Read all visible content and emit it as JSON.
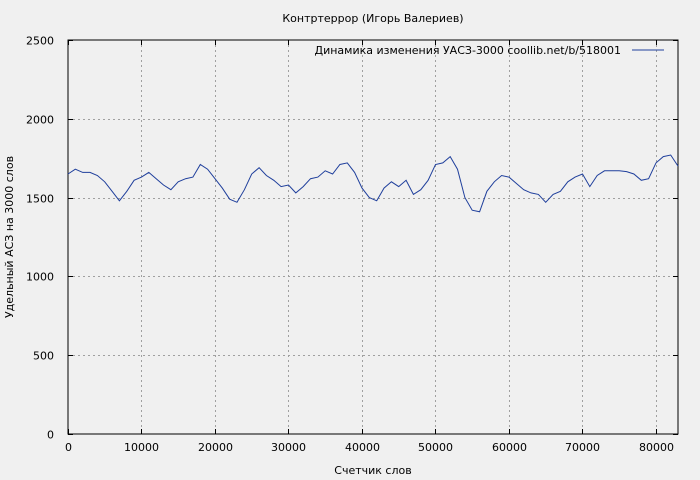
{
  "chart_data": {
    "type": "line",
    "title": "Контртеррор (Игорь Валериев)",
    "xlabel": "Счетчик слов",
    "ylabel": "Удельный АСЗ на 3000 слов",
    "xlim": [
      0,
      83000
    ],
    "ylim": [
      0,
      2500
    ],
    "xticks": [
      0,
      10000,
      20000,
      30000,
      40000,
      50000,
      60000,
      70000,
      80000
    ],
    "yticks": [
      0,
      500,
      1000,
      1500,
      2000,
      2500
    ],
    "grid": true,
    "legend_position": "top-right",
    "colors": {
      "line": "#1f3f9c",
      "grid": "#a0a0a0",
      "background": "#f0f0f0"
    },
    "series": [
      {
        "name": "Динамика изменения УАСЗ-3000  coollib.net/b/518001",
        "x": [
          0,
          1000,
          2000,
          3000,
          4000,
          5000,
          6000,
          7000,
          8000,
          9000,
          10000,
          11000,
          12000,
          13000,
          14000,
          15000,
          16000,
          17000,
          18000,
          19000,
          20000,
          21000,
          22000,
          23000,
          24000,
          25000,
          26000,
          27000,
          28000,
          29000,
          30000,
          31000,
          32000,
          33000,
          34000,
          35000,
          36000,
          37000,
          38000,
          39000,
          40000,
          41000,
          42000,
          43000,
          44000,
          45000,
          46000,
          47000,
          48000,
          49000,
          50000,
          51000,
          52000,
          53000,
          54000,
          55000,
          56000,
          57000,
          58000,
          59000,
          60000,
          61000,
          62000,
          63000,
          64000,
          65000,
          66000,
          67000,
          68000,
          69000,
          70000,
          71000,
          72000,
          73000,
          74000,
          75000,
          76000,
          77000,
          78000,
          79000,
          80000,
          81000,
          82000,
          83000
        ],
        "values": [
          1650,
          1680,
          1660,
          1660,
          1640,
          1600,
          1540,
          1480,
          1540,
          1610,
          1630,
          1660,
          1620,
          1580,
          1550,
          1600,
          1620,
          1630,
          1710,
          1680,
          1620,
          1560,
          1490,
          1470,
          1550,
          1650,
          1690,
          1640,
          1610,
          1570,
          1580,
          1530,
          1570,
          1620,
          1630,
          1670,
          1650,
          1710,
          1720,
          1660,
          1560,
          1500,
          1480,
          1560,
          1600,
          1570,
          1610,
          1520,
          1550,
          1610,
          1710,
          1720,
          1760,
          1680,
          1500,
          1420,
          1410,
          1540,
          1600,
          1640,
          1630,
          1590,
          1550,
          1530,
          1520,
          1470,
          1520,
          1540,
          1600,
          1630,
          1650,
          1570,
          1640,
          1670,
          1670,
          1670,
          1665,
          1650,
          1610,
          1620,
          1720,
          1760,
          1770,
          1700
        ]
      }
    ]
  }
}
